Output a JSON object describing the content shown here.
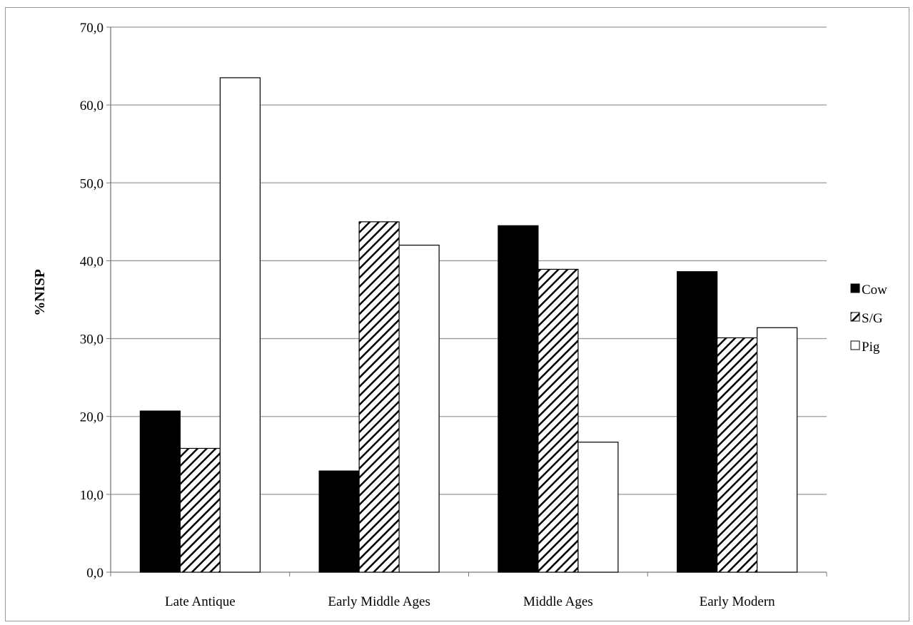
{
  "chart_data": {
    "type": "bar",
    "ylabel": "%NISP",
    "xlabel": "",
    "ylim": [
      0,
      70
    ],
    "ytick_labels": [
      "0,0",
      "10,0",
      "20,0",
      "30,0",
      "40,0",
      "50,0",
      "60,0",
      "70,0"
    ],
    "categories": [
      "Late Antique",
      "Early Middle Ages",
      "Middle Ages",
      "Early Modern"
    ],
    "series": [
      {
        "name": "Cow",
        "values": [
          20.7,
          13.0,
          44.5,
          38.6
        ],
        "fill": "solid-black"
      },
      {
        "name": "S/G",
        "values": [
          15.9,
          45.0,
          38.9,
          30.1
        ],
        "fill": "diagonal-hatch"
      },
      {
        "name": "Pig",
        "values": [
          63.5,
          42.0,
          16.7,
          31.4
        ],
        "fill": "white"
      }
    ],
    "grid": "horizontal",
    "legend": "right",
    "colors": {
      "cow": "#000000",
      "hatch": "#000000",
      "pig": "#ffffff",
      "grid": "#9a9a9a"
    }
  }
}
